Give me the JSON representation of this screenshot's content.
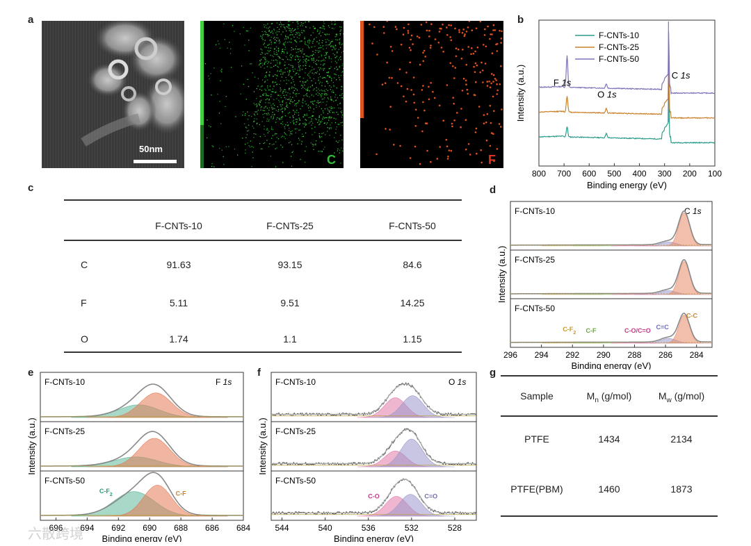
{
  "panels": {
    "a": {
      "label": "a",
      "scale_bar": "50nm",
      "maps": [
        {
          "element": "C",
          "color": "#2fbf3a"
        },
        {
          "element": "F",
          "color": "#e0521f"
        }
      ]
    },
    "c": {
      "label": "c",
      "columns": [
        "F-CNTs-10",
        "F-CNTs-25",
        "F-CNTs-50"
      ],
      "rows": [
        {
          "el": "C",
          "values": [
            "91.63",
            "93.15",
            "84.6"
          ]
        },
        {
          "el": "F",
          "values": [
            "5.11",
            "9.51",
            "14.25"
          ]
        },
        {
          "el": "O",
          "values": [
            "1.74",
            "1.1",
            "1.15"
          ]
        }
      ]
    },
    "g": {
      "label": "g",
      "header": {
        "sample": "Sample",
        "mn_base": "M",
        "mn_sub": "n",
        "mn_unit": " (g/mol)",
        "mw_base": "M",
        "mw_sub": "w",
        "mw_unit": " (g/mol)"
      },
      "rows": [
        {
          "sample": "PTFE",
          "mn": "1434",
          "mw": "2134"
        },
        {
          "sample": "PTFE(PBM)",
          "mn": "1460",
          "mw": "1873"
        }
      ]
    }
  },
  "watermark": "六散跨境",
  "chart_data": [
    {
      "id": "b",
      "label": "b",
      "type": "line",
      "xlabel": "Binding energy (eV)",
      "ylabel": "Intensity (a.u.)",
      "xlim": [
        800,
        100
      ],
      "xticks": [
        800,
        700,
        600,
        500,
        400,
        300,
        200,
        100
      ],
      "series": [
        {
          "name": "F-CNTs-10",
          "color": "#2a9c8a",
          "offset": 0.0,
          "f_peak": 0.07
        },
        {
          "name": "F-CNTs-25",
          "color": "#c9822b",
          "offset": 0.17,
          "f_peak": 0.11
        },
        {
          "name": "F-CNTs-50",
          "color": "#7f72b8",
          "offset": 0.34,
          "f_peak": 0.22
        }
      ],
      "annotations": [
        {
          "text": "F ",
          "italic": "1s",
          "x": 720,
          "y": 0.55
        },
        {
          "text": "O ",
          "italic": "1s",
          "x": 545,
          "y": 0.47
        },
        {
          "text": "C ",
          "italic": "1s",
          "x": 250,
          "y": 0.6
        }
      ]
    },
    {
      "id": "d",
      "label": "d",
      "type": "line",
      "xlabel": "Binding energy (eV)",
      "ylabel": "Intensity (a.u.)",
      "xlim": [
        296,
        283
      ],
      "xticks": [
        296,
        294,
        292,
        290,
        288,
        286,
        284
      ],
      "subplots": [
        {
          "name": "F-CNTs-10",
          "corner": "C ",
          "corner_italic": "1s",
          "main_peak": {
            "center": 284.8,
            "height": 0.85,
            "width": 0.35
          },
          "side_peak": {
            "center": 285.8,
            "height": 0.1,
            "width": 0.5
          }
        },
        {
          "name": "F-CNTs-25",
          "main_peak": {
            "center": 284.8,
            "height": 0.85,
            "width": 0.35
          },
          "side_peak": {
            "center": 285.8,
            "height": 0.1,
            "width": 0.5
          }
        },
        {
          "name": "F-CNTs-50",
          "main_peak": {
            "center": 284.8,
            "height": 0.72,
            "width": 0.35
          },
          "side_peak": {
            "center": 285.8,
            "height": 0.12,
            "width": 0.5
          },
          "labels": [
            {
              "text": "C-F",
              "sub": "2",
              "color": "#c9982a",
              "x": 292.2,
              "y": 0.3
            },
            {
              "text": "C-F",
              "sub": "",
              "color": "#6aa83a",
              "x": 290.8,
              "y": 0.27
            },
            {
              "text": "C-O/C=O",
              "sub": "",
              "color": "#c03a86",
              "x": 287.8,
              "y": 0.27
            },
            {
              "text": "C=C",
              "sub": "",
              "color": "#6e6cb8",
              "x": 286.2,
              "y": 0.36
            },
            {
              "text": "C-C",
              "sub": "",
              "color": "#c9822b",
              "x": 284.3,
              "y": 0.65
            }
          ]
        }
      ]
    },
    {
      "id": "e",
      "label": "e",
      "type": "line",
      "xlabel": "Binding energy (eV)",
      "ylabel": "Intensity (a.u.)",
      "xlim": [
        697,
        684
      ],
      "xticks": [
        696,
        694,
        692,
        690,
        688,
        686,
        684
      ],
      "subplots": [
        {
          "name": "F-CNTs-10",
          "corner": "F ",
          "corner_italic": "1s",
          "p1": {
            "center": 689.6,
            "height": 0.62,
            "width": 1.0
          },
          "p2": {
            "center": 690.7,
            "height": 0.32,
            "width": 1.3
          }
        },
        {
          "name": "F-CNTs-25",
          "p1": {
            "center": 689.7,
            "height": 0.72,
            "width": 1.0
          },
          "p2": {
            "center": 690.9,
            "height": 0.25,
            "width": 1.4
          }
        },
        {
          "name": "F-CNTs-50",
          "p1": {
            "center": 689.5,
            "height": 0.78,
            "width": 0.9
          },
          "p2": {
            "center": 691.0,
            "height": 0.62,
            "width": 1.3
          },
          "labels": [
            {
              "text": "C-F",
              "sub": "2",
              "color": "#2a9c72",
              "x": 692.8,
              "y": 0.58
            },
            {
              "text": "C-F",
              "sub": "",
              "color": "#c9822b",
              "x": 688.0,
              "y": 0.52
            }
          ]
        }
      ]
    },
    {
      "id": "f",
      "label": "f",
      "type": "line",
      "xlabel": "Binding energy (eV)",
      "ylabel": "Intensity (a.u.)",
      "xlim": [
        545,
        526
      ],
      "xticks": [
        544,
        540,
        536,
        532,
        528
      ],
      "subplots": [
        {
          "name": "F-CNTs-10",
          "corner": "O ",
          "corner_italic": "1s",
          "pink": {
            "center": 533.5,
            "height": 0.5
          },
          "purple": {
            "center": 531.9,
            "height": 0.55
          }
        },
        {
          "name": "F-CNTs-25",
          "pink": {
            "center": 533.5,
            "height": 0.4
          },
          "purple": {
            "center": 532.0,
            "height": 0.7
          }
        },
        {
          "name": "F-CNTs-50",
          "pink": {
            "center": 533.4,
            "height": 0.5
          },
          "purple": {
            "center": 532.1,
            "height": 0.55
          },
          "labels": [
            {
              "text": "C-O",
              "color": "#c03a86",
              "x": 535.5,
              "y": 0.45
            },
            {
              "text": "C=O",
              "color": "#6e6cb8",
              "x": 530.2,
              "y": 0.45
            }
          ]
        }
      ]
    }
  ]
}
